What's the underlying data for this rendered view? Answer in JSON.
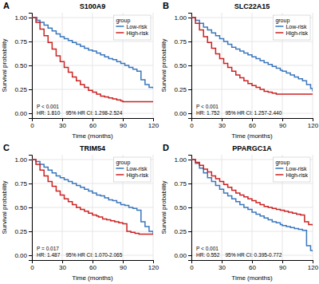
{
  "chart_data": [
    {
      "type": "line",
      "line_style": "step",
      "title": "S100A9",
      "panel_label": "A",
      "annotations": [
        "P < 0.001",
        "HR: 1.810    95% HR CI: 1.298-2.524"
      ],
      "xlabel": "Time (months)",
      "ylabel": "Survival probability",
      "xlim": [
        0,
        120
      ],
      "ylim": [
        -0.05,
        1.05
      ],
      "xticks": [
        0,
        30,
        60,
        90,
        120
      ],
      "yticks": [
        {
          "value": 0,
          "label": "0.00"
        },
        0.25,
        {
          "value": 0.5,
          "label": "0.50"
        },
        0.75,
        {
          "value": 1,
          "label": "1.00"
        }
      ],
      "grid": true,
      "legend": "upper right",
      "legend_title": "group",
      "series": [
        {
          "name": "Low-risk",
          "color": "#3A77BD",
          "x": [
            0,
            5,
            8,
            12,
            16,
            20,
            24,
            28,
            32,
            36,
            40,
            44,
            48,
            52,
            56,
            60,
            64,
            68,
            72,
            76,
            80,
            84,
            88,
            92,
            96,
            100,
            104,
            108,
            112,
            116,
            120
          ],
          "values": [
            1.0,
            0.97,
            0.95,
            0.92,
            0.89,
            0.86,
            0.83,
            0.8,
            0.78,
            0.76,
            0.74,
            0.72,
            0.7,
            0.68,
            0.66,
            0.65,
            0.63,
            0.61,
            0.59,
            0.57,
            0.56,
            0.54,
            0.52,
            0.5,
            0.48,
            0.46,
            0.44,
            0.35,
            0.3,
            0.27,
            0.26
          ]
        },
        {
          "name": "High-risk",
          "color": "#CC2222",
          "x": [
            0,
            4,
            8,
            12,
            16,
            20,
            24,
            28,
            32,
            36,
            40,
            44,
            48,
            52,
            56,
            60,
            64,
            68,
            72,
            76,
            80,
            84,
            88,
            90,
            94,
            98,
            102,
            106,
            110,
            114,
            118,
            120
          ],
          "values": [
            1.0,
            0.95,
            0.88,
            0.81,
            0.74,
            0.67,
            0.6,
            0.54,
            0.48,
            0.43,
            0.38,
            0.34,
            0.3,
            0.27,
            0.24,
            0.22,
            0.2,
            0.18,
            0.17,
            0.16,
            0.15,
            0.14,
            0.13,
            0.12,
            0.12,
            0.12,
            0.12,
            0.12,
            0.12,
            0.12,
            0.12,
            0.12
          ]
        }
      ]
    },
    {
      "type": "line",
      "line_style": "step",
      "title": "SLC22A15",
      "panel_label": "B",
      "annotations": [
        "P < 0.001",
        "HR: 1.752    95% HR CI: 1.257-2.440"
      ],
      "xlabel": "Time (months)",
      "ylabel": "Survival probability",
      "xlim": [
        0,
        120
      ],
      "ylim": [
        -0.05,
        1.05
      ],
      "xticks": [
        0,
        30,
        60,
        90,
        120
      ],
      "yticks": [
        {
          "value": 0,
          "label": "0.00"
        },
        0.25,
        {
          "value": 0.5,
          "label": "0.50"
        },
        0.75,
        {
          "value": 1,
          "label": "1.00"
        }
      ],
      "grid": true,
      "legend": "upper right",
      "legend_title": "group",
      "series": [
        {
          "name": "Low-risk",
          "color": "#3A77BD",
          "x": [
            0,
            4,
            8,
            12,
            16,
            20,
            24,
            28,
            32,
            36,
            40,
            44,
            48,
            52,
            56,
            60,
            64,
            68,
            72,
            76,
            80,
            84,
            88,
            90,
            94,
            98,
            102,
            106,
            110,
            114,
            118,
            120
          ],
          "values": [
            1.0,
            0.97,
            0.94,
            0.9,
            0.87,
            0.84,
            0.81,
            0.78,
            0.75,
            0.72,
            0.69,
            0.67,
            0.65,
            0.63,
            0.61,
            0.59,
            0.57,
            0.55,
            0.53,
            0.51,
            0.49,
            0.47,
            0.45,
            0.44,
            0.42,
            0.4,
            0.38,
            0.36,
            0.34,
            0.3,
            0.26,
            0.23
          ]
        },
        {
          "name": "High-risk",
          "color": "#CC2222",
          "x": [
            0,
            4,
            8,
            12,
            16,
            20,
            24,
            28,
            32,
            36,
            40,
            44,
            48,
            52,
            56,
            60,
            64,
            68,
            72,
            76,
            80,
            84,
            88,
            92,
            96,
            100,
            104,
            108,
            112,
            116,
            120
          ],
          "values": [
            1.0,
            0.94,
            0.87,
            0.8,
            0.74,
            0.68,
            0.62,
            0.57,
            0.52,
            0.48,
            0.44,
            0.4,
            0.37,
            0.34,
            0.31,
            0.29,
            0.27,
            0.25,
            0.23,
            0.22,
            0.21,
            0.2,
            0.2,
            0.2,
            0.2,
            0.2,
            0.2,
            0.2,
            0.2,
            0.2,
            0.2
          ]
        }
      ]
    },
    {
      "type": "line",
      "line_style": "step",
      "title": "TRIM54",
      "panel_label": "C",
      "annotations": [
        "P = 0.017",
        "HR: 1.487    95% HR CI: 1.070-2.065"
      ],
      "xlabel": "Time (months)",
      "ylabel": "Survival probability",
      "xlim": [
        0,
        120
      ],
      "ylim": [
        -0.05,
        1.05
      ],
      "xticks": [
        0,
        30,
        60,
        90,
        120
      ],
      "yticks": [
        {
          "value": 0,
          "label": "0.00"
        },
        0.25,
        {
          "value": 0.5,
          "label": "0.50"
        },
        0.75,
        {
          "value": 1,
          "label": "1.00"
        }
      ],
      "grid": true,
      "legend": "upper right",
      "legend_title": "group",
      "series": [
        {
          "name": "Low-risk",
          "color": "#3A77BD",
          "x": [
            0,
            4,
            8,
            12,
            16,
            20,
            24,
            28,
            32,
            36,
            40,
            44,
            48,
            52,
            56,
            60,
            64,
            68,
            72,
            76,
            80,
            84,
            88,
            92,
            96,
            100,
            104,
            108,
            112,
            116,
            120
          ],
          "values": [
            1.0,
            0.98,
            0.95,
            0.92,
            0.89,
            0.86,
            0.83,
            0.81,
            0.79,
            0.77,
            0.75,
            0.73,
            0.71,
            0.69,
            0.67,
            0.65,
            0.63,
            0.62,
            0.6,
            0.58,
            0.57,
            0.55,
            0.53,
            0.52,
            0.5,
            0.49,
            0.47,
            0.35,
            0.3,
            0.25,
            0.22
          ]
        },
        {
          "name": "High-risk",
          "color": "#CC2222",
          "x": [
            0,
            4,
            8,
            12,
            16,
            20,
            24,
            28,
            32,
            36,
            40,
            44,
            48,
            52,
            56,
            60,
            64,
            66,
            70,
            74,
            78,
            82,
            86,
            90,
            94,
            98,
            102,
            106,
            110,
            114,
            118,
            120
          ],
          "values": [
            1.0,
            0.95,
            0.89,
            0.83,
            0.77,
            0.72,
            0.67,
            0.63,
            0.59,
            0.56,
            0.53,
            0.5,
            0.48,
            0.46,
            0.44,
            0.42,
            0.41,
            0.4,
            0.38,
            0.37,
            0.36,
            0.35,
            0.34,
            0.33,
            0.25,
            0.24,
            0.23,
            0.22,
            0.22,
            0.22,
            0.22,
            0.22
          ]
        }
      ]
    },
    {
      "type": "line",
      "line_style": "step",
      "title": "PPARGC1A",
      "panel_label": "D",
      "annotations": [
        "P < 0.001",
        "HR: 0.552    95% HR CI: 0.395-0.772"
      ],
      "xlabel": "Time (months)",
      "ylabel": "Survival probability",
      "xlim": [
        0,
        120
      ],
      "ylim": [
        -0.05,
        1.05
      ],
      "xticks": [
        0,
        30,
        60,
        90,
        120
      ],
      "yticks": [
        {
          "value": 0,
          "label": "0.00"
        },
        0.25,
        {
          "value": 0.5,
          "label": "0.50"
        },
        0.75,
        {
          "value": 1,
          "label": "1.00"
        }
      ],
      "grid": true,
      "legend": "upper right",
      "legend_title": "group",
      "series": [
        {
          "name": "Low-risk",
          "color": "#3A77BD",
          "x": [
            0,
            4,
            8,
            12,
            16,
            20,
            24,
            28,
            32,
            36,
            40,
            44,
            48,
            52,
            56,
            60,
            64,
            68,
            72,
            76,
            80,
            84,
            88,
            90,
            94,
            98,
            102,
            106,
            110,
            114,
            118,
            120
          ],
          "values": [
            1.0,
            0.96,
            0.91,
            0.86,
            0.81,
            0.77,
            0.73,
            0.69,
            0.65,
            0.62,
            0.59,
            0.56,
            0.53,
            0.5,
            0.48,
            0.45,
            0.43,
            0.41,
            0.39,
            0.37,
            0.35,
            0.34,
            0.32,
            0.31,
            0.3,
            0.29,
            0.28,
            0.27,
            0.26,
            0.1,
            0.05,
            0.04
          ]
        },
        {
          "name": "High-risk",
          "color": "#CC2222",
          "x": [
            0,
            4,
            8,
            12,
            16,
            20,
            24,
            28,
            32,
            36,
            40,
            44,
            48,
            52,
            56,
            60,
            64,
            68,
            72,
            76,
            80,
            84,
            88,
            92,
            96,
            100,
            104,
            108,
            112,
            116,
            120
          ],
          "values": [
            1.0,
            0.97,
            0.94,
            0.9,
            0.87,
            0.83,
            0.8,
            0.77,
            0.74,
            0.71,
            0.68,
            0.65,
            0.63,
            0.61,
            0.59,
            0.57,
            0.55,
            0.53,
            0.51,
            0.5,
            0.49,
            0.48,
            0.47,
            0.46,
            0.45,
            0.44,
            0.43,
            0.42,
            0.35,
            0.32,
            0.31
          ]
        }
      ]
    }
  ]
}
